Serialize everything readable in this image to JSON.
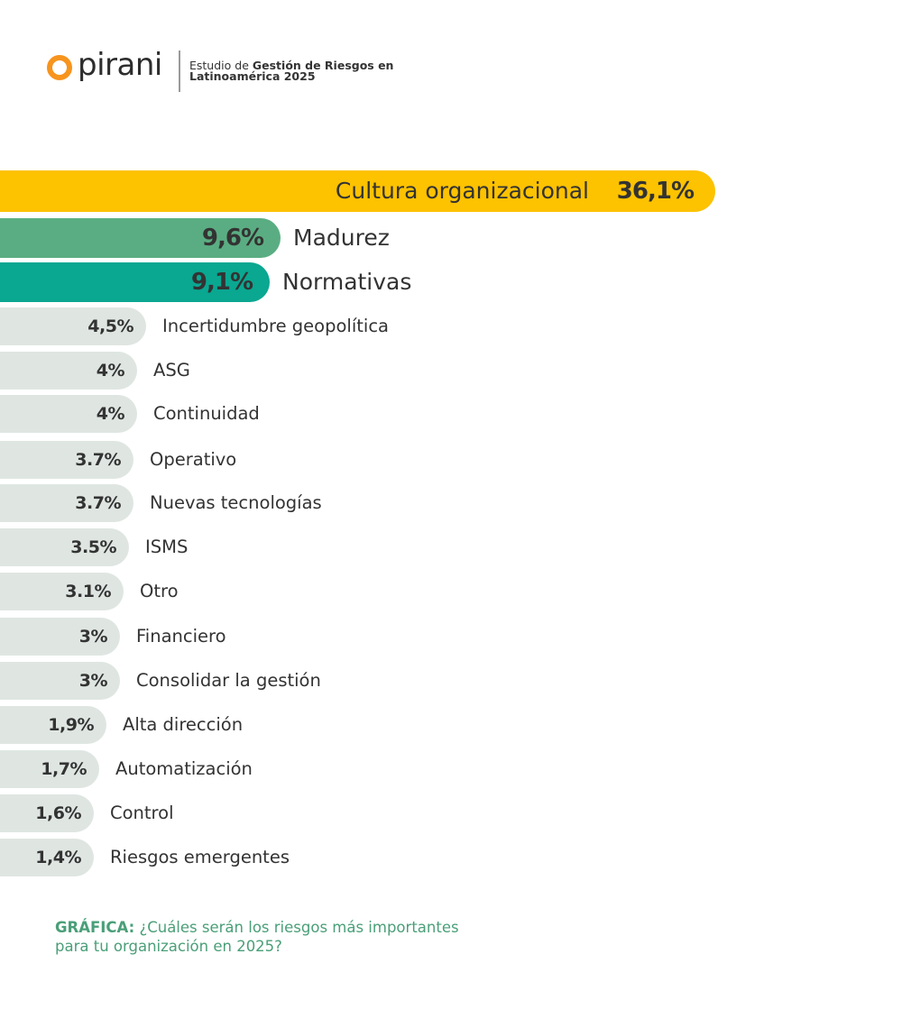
{
  "header": {
    "brand": "pirani",
    "subtitle_prefix": "Estudio de ",
    "subtitle_bold_1": "Gestión de Riesgos en",
    "subtitle_bold_2": "Latinoamérica 2025"
  },
  "chart_data": {
    "type": "bar",
    "orientation": "horizontal",
    "title": "¿Cuáles serán los riesgos más importantes para tu organización en 2025?",
    "categories": [
      "Cultura organizacional",
      "Madurez",
      "Normativas",
      "Incertidumbre geopolítica",
      "ASG",
      "Continuidad",
      "Operativo",
      "Nuevas tecnologías",
      "ISMS",
      "Otro",
      "Financiero",
      "Consolidar la gestión",
      "Alta dirección",
      "Automatización",
      "Control",
      "Riesgos emergentes"
    ],
    "values": [
      36.1,
      9.6,
      9.1,
      4.5,
      4,
      4,
      3.7,
      3.7,
      3.5,
      3.1,
      3,
      3,
      1.9,
      1.7,
      1.6,
      1.4
    ],
    "value_labels": [
      "36,1%",
      "9,6%",
      "9,1%",
      "4,5%",
      "4%",
      "4%",
      "3.7%",
      "3.7%",
      "3.5%",
      "3.1%",
      "3%",
      "3%",
      "1,9%",
      "1,7%",
      "1,6%",
      "1,4%"
    ],
    "colors": [
      "#fdc200",
      "#5aad82",
      "#0aa791",
      "#dfe6e2",
      "#dfe6e2",
      "#dfe6e2",
      "#dfe6e2",
      "#dfe6e2",
      "#dfe6e2",
      "#dfe6e2",
      "#dfe6e2",
      "#dfe6e2",
      "#dfe6e2",
      "#dfe6e2",
      "#dfe6e2",
      "#dfe6e2"
    ],
    "xlabel": "",
    "ylabel": "",
    "grid": false
  },
  "caption": {
    "label": "GRÁFICA:",
    "text_1": " ¿Cuáles serán los riesgos más importantes",
    "text_2": "para tu organización en 2025?"
  },
  "colors": {
    "accent_orange": "#f7941d",
    "caption_green": "#4a9f78"
  }
}
